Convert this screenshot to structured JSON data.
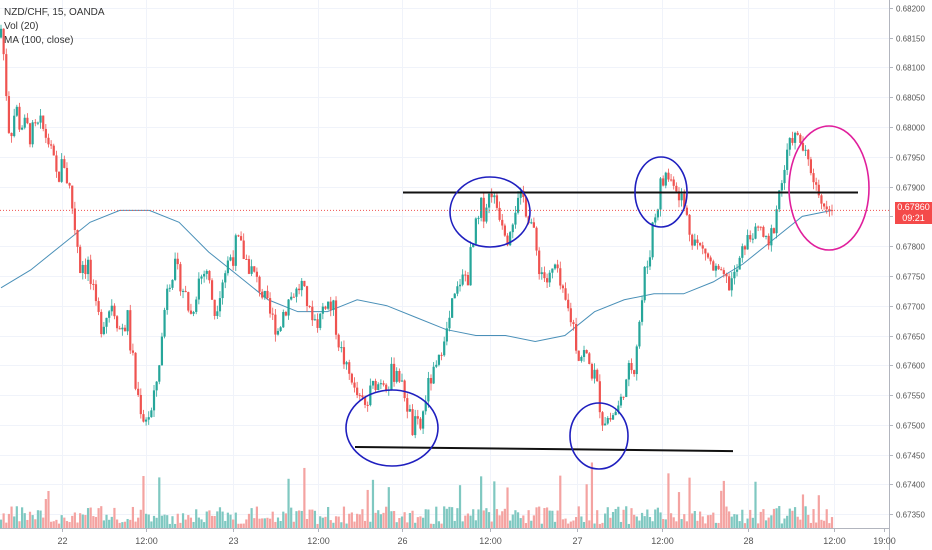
{
  "legend": {
    "symbol": "NZD/CHF, 15, OANDA",
    "volume": "Vol (20)",
    "ma": "MA (100, close)"
  },
  "current_price": {
    "value": "0.67860",
    "countdown": "09:21",
    "color": "#f44a4a"
  },
  "colors": {
    "up": "#26a69a",
    "down": "#ef5350",
    "volume_up": "#7fc8c1",
    "volume_down": "#f4a3a1",
    "ma": "#4a90b8",
    "annotation_blue": "#1f1fbf",
    "annotation_magenta": "#e01f9c",
    "trendline": "#111111"
  },
  "chart_data": {
    "type": "candlestick",
    "symbol": "NZD/CHF",
    "timeframe": "15",
    "source": "OANDA",
    "y_ticks": [
      "0.68200",
      "0.68150",
      "0.68100",
      "0.68050",
      "0.68000",
      "0.67950",
      "0.67900",
      "0.67850",
      "0.67800",
      "0.67750",
      "0.67700",
      "0.67650",
      "0.67600",
      "0.67550",
      "0.67500",
      "0.67450",
      "0.67400",
      "0.67350"
    ],
    "ylim": [
      0.67327,
      0.68213
    ],
    "x_ticks": [
      "22",
      "12:00",
      "23",
      "12:00",
      "26",
      "12:00",
      "27",
      "12:00",
      "28",
      "12:00",
      "19:00"
    ],
    "grid": true,
    "current_price_line": 0.6786,
    "price_path": [
      [
        0.6815,
        0.6818
      ],
      [
        0.6795,
        0.6812
      ],
      [
        0.6798,
        0.6806
      ],
      [
        0.6798,
        0.6802
      ],
      [
        0.6796,
        0.6801
      ],
      [
        0.6799,
        0.6802
      ],
      [
        0.6796,
        0.6799
      ],
      [
        0.6789,
        0.6794
      ],
      [
        0.6792,
        0.6796
      ],
      [
        0.6783,
        0.6791
      ],
      [
        0.6774,
        0.6782
      ],
      [
        0.6775,
        0.6779
      ],
      [
        0.6763,
        0.6771
      ],
      [
        0.6766,
        0.6769
      ],
      [
        0.677,
        0.677
      ],
      [
        0.6764,
        0.6768
      ],
      [
        0.6765,
        0.677
      ],
      [
        0.6754,
        0.6759
      ],
      [
        0.675,
        0.6752
      ],
      [
        0.675,
        0.6754
      ],
      [
        0.676,
        0.676
      ],
      [
        0.6772,
        0.6776
      ],
      [
        0.6775,
        0.6778
      ],
      [
        0.6771,
        0.6775
      ],
      [
        0.6766,
        0.6771
      ],
      [
        0.6773,
        0.6776
      ],
      [
        0.6775,
        0.6777
      ],
      [
        0.6767,
        0.6771
      ],
      [
        0.6773,
        0.6776
      ],
      [
        0.6775,
        0.6782
      ],
      [
        0.678,
        0.6782
      ],
      [
        0.6775,
        0.678
      ],
      [
        0.6775,
        0.6776
      ],
      [
        0.677,
        0.6774
      ],
      [
        0.6767,
        0.677
      ],
      [
        0.6764,
        0.6768
      ],
      [
        0.6768,
        0.6773
      ],
      [
        0.6771,
        0.6773
      ],
      [
        0.6772,
        0.6775
      ],
      [
        0.6768,
        0.677
      ],
      [
        0.6766,
        0.6768
      ],
      [
        0.6769,
        0.6773
      ],
      [
        0.6767,
        0.6771
      ],
      [
        0.676,
        0.6764
      ],
      [
        0.6758,
        0.6759
      ],
      [
        0.6755,
        0.6755
      ],
      [
        0.6749,
        0.6756
      ],
      [
        0.6755,
        0.6758
      ],
      [
        0.6757,
        0.6757
      ],
      [
        0.6755,
        0.676
      ],
      [
        0.6758,
        0.6761
      ],
      [
        0.6754,
        0.6756
      ],
      [
        0.6747,
        0.6752
      ],
      [
        0.6748,
        0.6751
      ],
      [
        0.6756,
        0.6758
      ],
      [
        0.6757,
        0.6761
      ],
      [
        0.6764,
        0.6764
      ],
      [
        0.6767,
        0.6772
      ],
      [
        0.6773,
        0.6775
      ],
      [
        0.6773,
        0.6778
      ],
      [
        0.6779,
        0.6785
      ],
      [
        0.6784,
        0.679
      ],
      [
        0.6788,
        0.679
      ],
      [
        0.6784,
        0.6787
      ],
      [
        0.678,
        0.6788
      ],
      [
        0.6785,
        0.6788
      ],
      [
        0.6786,
        0.679
      ],
      [
        0.6782,
        0.6786
      ],
      [
        0.6775,
        0.6778
      ],
      [
        0.6773,
        0.6775
      ],
      [
        0.6775,
        0.6778
      ],
      [
        0.677,
        0.6773
      ],
      [
        0.6766,
        0.677
      ],
      [
        0.6759,
        0.6768
      ],
      [
        0.6757,
        0.6764
      ],
      [
        0.6757,
        0.676
      ],
      [
        0.6749,
        0.6754
      ],
      [
        0.675,
        0.6752
      ],
      [
        0.6752,
        0.6754
      ],
      [
        0.6756,
        0.6758
      ],
      [
        0.6758,
        0.6766
      ],
      [
        0.6767,
        0.6775
      ],
      [
        0.6777,
        0.6784
      ],
      [
        0.6785,
        0.6792
      ],
      [
        0.679,
        0.6794
      ],
      [
        0.679,
        0.6791
      ],
      [
        0.6786,
        0.679
      ],
      [
        0.6781,
        0.6785
      ],
      [
        0.6778,
        0.6782
      ],
      [
        0.6778,
        0.678
      ],
      [
        0.6774,
        0.6778
      ],
      [
        0.6775,
        0.6776
      ],
      [
        0.6772,
        0.6775
      ],
      [
        0.6775,
        0.6777
      ],
      [
        0.6779,
        0.6782
      ],
      [
        0.6781,
        0.6783
      ],
      [
        0.6782,
        0.6784
      ],
      [
        0.6777,
        0.6781
      ],
      [
        0.6784,
        0.679
      ],
      [
        0.6791,
        0.6795
      ],
      [
        0.6797,
        0.68
      ],
      [
        0.6796,
        0.6799
      ],
      [
        0.6793,
        0.6795
      ],
      [
        0.6789,
        0.6791
      ],
      [
        0.6786,
        0.6787
      ],
      [
        0.6786,
        0.6786
      ]
    ],
    "ma_100": [
      [
        0,
        0.6773
      ],
      [
        5,
        0.6776
      ],
      [
        10,
        0.678
      ],
      [
        15,
        0.6784
      ],
      [
        20,
        0.6786
      ],
      [
        25,
        0.6786
      ],
      [
        30,
        0.6784
      ],
      [
        35,
        0.6779
      ],
      [
        40,
        0.6775
      ],
      [
        45,
        0.6771
      ],
      [
        50,
        0.6769
      ],
      [
        55,
        0.6769
      ],
      [
        60,
        0.6771
      ],
      [
        65,
        0.677
      ],
      [
        70,
        0.6768
      ],
      [
        75,
        0.6766
      ],
      [
        80,
        0.6765
      ],
      [
        85,
        0.6765
      ],
      [
        90,
        0.6764
      ],
      [
        95,
        0.6765
      ],
      [
        100,
        0.6769
      ],
      [
        105,
        0.6771
      ],
      [
        110,
        0.6772
      ],
      [
        115,
        0.6772
      ],
      [
        120,
        0.6774
      ],
      [
        125,
        0.6777
      ],
      [
        130,
        0.6781
      ],
      [
        135,
        0.6785
      ],
      [
        140,
        0.6786
      ]
    ],
    "annotations": {
      "resistance_line": [
        0.6789,
        0.6789
      ],
      "support_line": [
        0.67463,
        0.67456
      ]
    }
  }
}
